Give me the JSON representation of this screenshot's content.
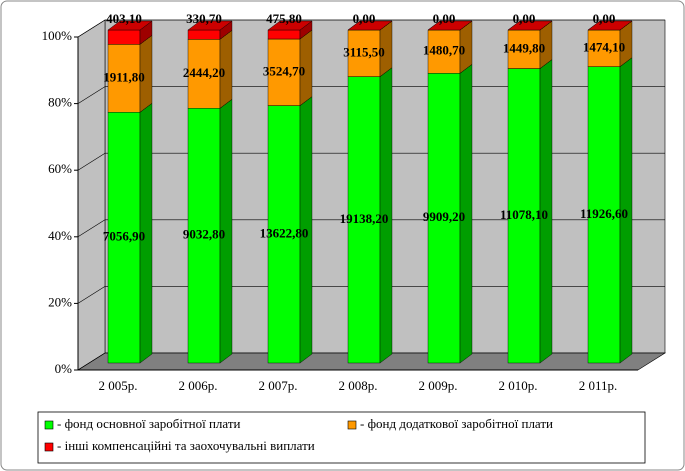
{
  "chart_data": {
    "type": "bar",
    "stacking": "percent",
    "categories": [
      "2 005р.",
      "2 006р.",
      "2 007р.",
      "2 008р.",
      "2 009р.",
      "2 010р.",
      "2 011р."
    ],
    "series": [
      {
        "name": "- фонд основної заробітної плати",
        "color": "#00ff00",
        "values": [
          7056.9,
          9032.8,
          13622.8,
          19138.2,
          9909.2,
          11078.1,
          11926.6
        ],
        "value_labels": [
          "7056,90",
          "9032,80",
          "13622,80",
          "19138,20",
          "9909,20",
          "11078,10",
          "11926,60"
        ]
      },
      {
        "name": "- фонд додаткової заробітної плати",
        "color": "#ff9900",
        "values": [
          1911.8,
          2444.2,
          3524.7,
          3115.5,
          1480.7,
          1449.8,
          1474.1
        ],
        "value_labels": [
          "1911,80",
          "2444,20",
          "3524,70",
          "3115,50",
          "1480,70",
          "1449,80",
          "1474,10"
        ]
      },
      {
        "name": "- інші компенсаційні та заохочувальні виплати",
        "color": "#ff0000",
        "values": [
          403.1,
          330.7,
          475.8,
          0,
          0,
          0,
          0
        ],
        "value_labels": [
          "403,10",
          "330,70",
          "475,80",
          "0,00",
          "0,00",
          "0,00",
          "0,00"
        ]
      }
    ],
    "ylim": [
      0,
      100
    ],
    "yticks": [
      {
        "value": 0,
        "label": "0%"
      },
      {
        "value": 20,
        "label": "20%"
      },
      {
        "value": 40,
        "label": "40%"
      },
      {
        "value": 60,
        "label": "60%"
      },
      {
        "value": 80,
        "label": "80%"
      },
      {
        "value": 100,
        "label": "100%"
      }
    ],
    "grid": true
  }
}
